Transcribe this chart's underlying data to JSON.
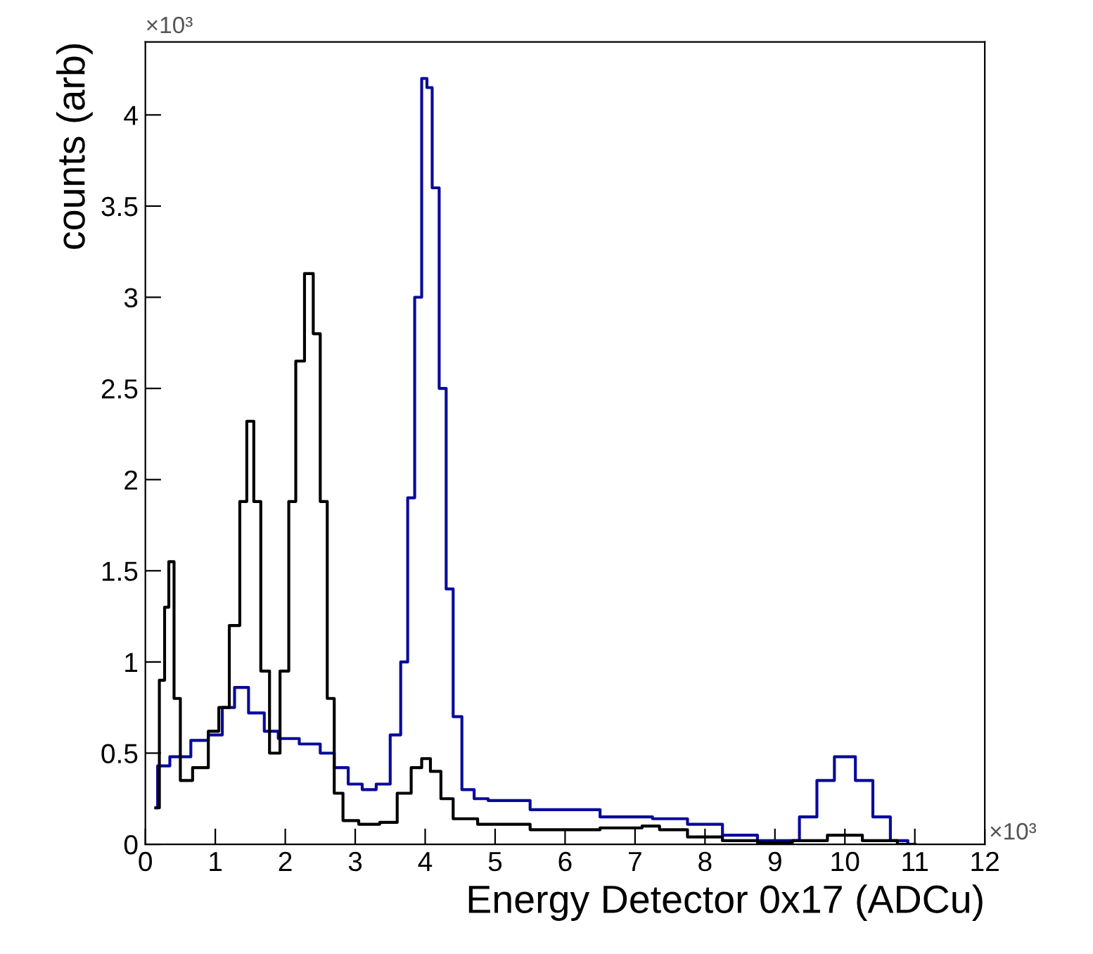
{
  "chart_data": {
    "type": "step",
    "xlabel": "Energy Detector 0x17 (ADCu)",
    "ylabel": "counts (arb)",
    "xlim": [
      0,
      12
    ],
    "ylim": [
      0,
      4.4
    ],
    "xticks": [
      0,
      1,
      2,
      3,
      4,
      5,
      6,
      7,
      8,
      9,
      10,
      11,
      12
    ],
    "yticks": [
      0,
      0.5,
      1,
      1.5,
      2,
      2.5,
      3,
      3.5,
      4
    ],
    "grid": false,
    "legend": false,
    "annotations": [
      "×10³",
      "×10³"
    ],
    "series": [
      {
        "color": "#0a0a9c",
        "x": [
          0.15,
          0.2,
          0.5,
          0.8,
          1.0,
          1.2,
          1.35,
          1.6,
          1.8,
          2.0,
          2.4,
          2.6,
          2.8,
          3.0,
          3.2,
          3.4,
          3.6,
          3.7,
          3.8,
          3.9,
          4.0,
          4.05,
          4.15,
          4.25,
          4.35,
          4.45,
          4.6,
          4.8,
          5.0,
          6.0,
          7.0,
          7.5,
          8.0,
          8.5,
          9.0,
          9.2,
          9.5,
          9.7,
          10.0,
          10.3,
          10.5,
          10.8,
          11.0
        ],
        "values": [
          0.2,
          0.43,
          0.48,
          0.57,
          0.6,
          0.75,
          0.86,
          0.72,
          0.62,
          0.58,
          0.55,
          0.5,
          0.42,
          0.33,
          0.3,
          0.33,
          0.6,
          1.0,
          1.9,
          3.0,
          4.2,
          4.15,
          3.6,
          2.5,
          1.4,
          0.7,
          0.3,
          0.25,
          0.24,
          0.19,
          0.15,
          0.14,
          0.11,
          0.05,
          0.02,
          0.02,
          0.15,
          0.35,
          0.48,
          0.35,
          0.15,
          0.02,
          0
        ]
      },
      {
        "color": "#000000",
        "x": [
          0.15,
          0.25,
          0.3,
          0.37,
          0.45,
          0.55,
          0.8,
          1.0,
          1.1,
          1.3,
          1.4,
          1.5,
          1.6,
          1.7,
          1.85,
          2.0,
          2.1,
          2.2,
          2.35,
          2.45,
          2.55,
          2.65,
          2.75,
          2.9,
          3.2,
          3.5,
          3.7,
          3.9,
          4.0,
          4.15,
          4.3,
          4.5,
          5.0,
          6.0,
          7.0,
          7.2,
          7.5,
          8.0,
          8.5,
          9.0,
          9.5,
          10.0,
          10.5,
          11.0
        ],
        "values": [
          0.2,
          0.9,
          1.3,
          1.55,
          0.8,
          0.35,
          0.42,
          0.62,
          0.75,
          1.2,
          1.88,
          2.32,
          1.88,
          0.95,
          0.5,
          0.95,
          1.88,
          2.65,
          3.13,
          2.8,
          1.88,
          0.8,
          0.28,
          0.13,
          0.11,
          0.12,
          0.28,
          0.42,
          0.47,
          0.4,
          0.25,
          0.14,
          0.11,
          0.08,
          0.09,
          0.1,
          0.08,
          0.04,
          0.02,
          0.01,
          0.02,
          0.05,
          0.02,
          0
        ]
      }
    ]
  }
}
